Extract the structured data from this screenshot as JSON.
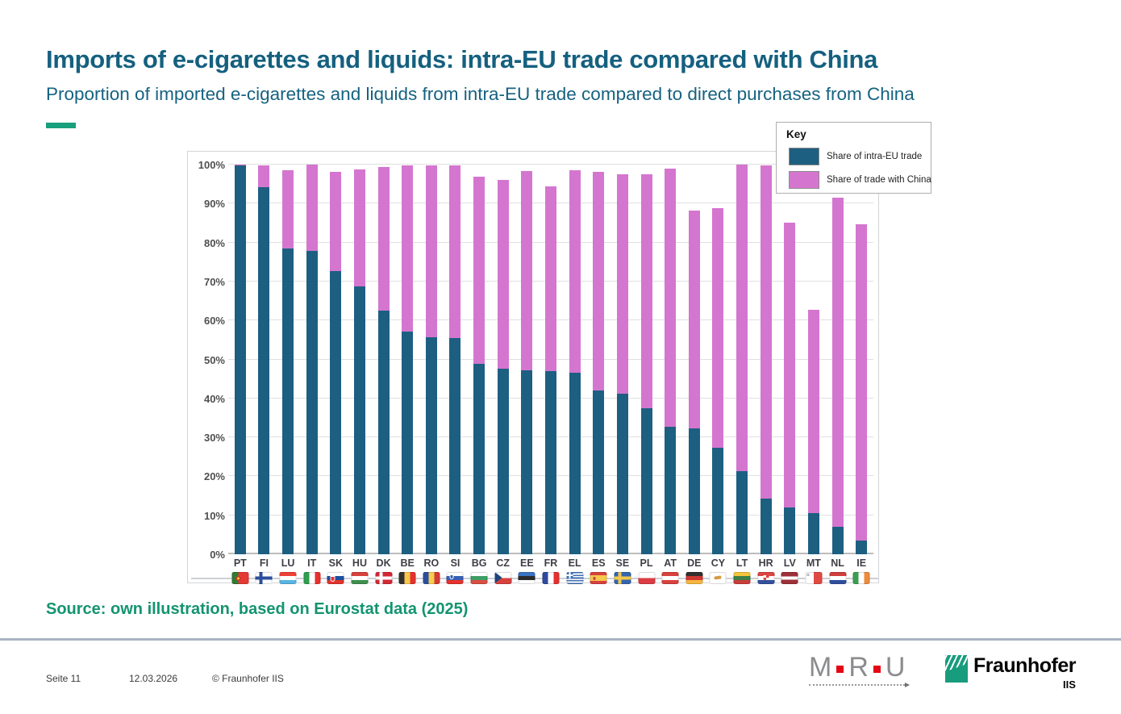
{
  "header": {
    "title": "Imports of e-cigarettes and liquids: intra-EU trade compared with China",
    "subtitle": "Proportion of imported e-cigarettes and liquids from intra-EU trade compared to direct purchases from China"
  },
  "legend": {
    "title": "Key",
    "items": [
      {
        "label": "Share of intra-EU trade",
        "color": "#1d5f80"
      },
      {
        "label": "Share of trade with China",
        "color": "#d476cf"
      }
    ]
  },
  "chart_data": {
    "type": "bar",
    "stacked": true,
    "title": "",
    "xlabel": "",
    "ylabel": "",
    "ylim": [
      0,
      100
    ],
    "grid": true,
    "legend_position": "top-right",
    "y_ticks": [
      "0%",
      "10%",
      "20%",
      "30%",
      "40%",
      "50%",
      "60%",
      "70%",
      "80%",
      "90%",
      "100%"
    ],
    "categories": [
      "PT",
      "FI",
      "LU",
      "IT",
      "SK",
      "HU",
      "DK",
      "BE",
      "RO",
      "SI",
      "BG",
      "CZ",
      "EE",
      "FR",
      "EL",
      "ES",
      "SE",
      "PL",
      "AT",
      "DE",
      "CY",
      "LT",
      "HR",
      "LV",
      "MT",
      "NL",
      "IE"
    ],
    "series": [
      {
        "name": "Share of intra-EU trade",
        "color": "#1d5f80",
        "values": [
          99.7,
          94.2,
          78.5,
          77.8,
          72.7,
          68.8,
          62.5,
          57.2,
          55.8,
          55.5,
          48.8,
          47.7,
          47.3,
          47.1,
          46.5,
          42.0,
          41.2,
          37.5,
          32.7,
          32.2,
          27.3,
          21.4,
          14.2,
          12.0,
          10.5,
          7.0,
          3.5
        ]
      },
      {
        "name": "Share of trade with China",
        "color": "#d476cf",
        "values": [
          0.3,
          5.5,
          20.0,
          22.2,
          25.5,
          30.0,
          36.9,
          42.5,
          44.0,
          44.3,
          48.0,
          48.4,
          51.1,
          47.3,
          52.0,
          56.2,
          56.4,
          60.0,
          66.2,
          56.0,
          61.5,
          78.6,
          85.6,
          73.0,
          52.3,
          84.5,
          81.1
        ]
      }
    ]
  },
  "source_text": "Source: own illustration, based on Eurostat data (2025)",
  "footer": {
    "page_label": "Seite 11",
    "date": "12.03.2026",
    "copyright": "© Fraunhofer IIS",
    "mru": {
      "m": "M",
      "r": "R",
      "u": "U"
    },
    "fraunhofer": {
      "name": "Fraunhofer",
      "division": "IIS"
    }
  },
  "colors": {
    "title_text": "#15607f",
    "accent_dash": "#18a07c",
    "source_text": "#13946f",
    "intra_eu_bar": "#1d5f80",
    "china_bar": "#d476cf",
    "footer_rule": "#a8b3c2",
    "fraunhofer_green": "#179c7d",
    "mru_red": "#e30613"
  }
}
